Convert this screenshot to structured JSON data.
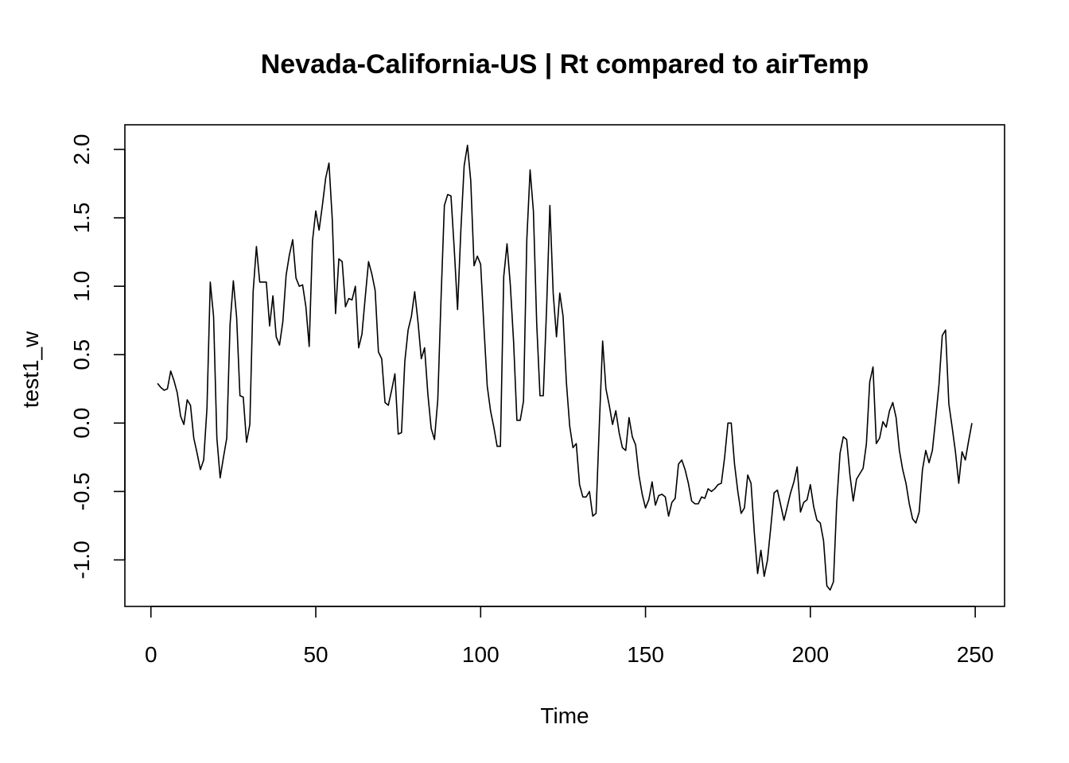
{
  "chart_data": {
    "type": "line",
    "title": "Nevada-California-US | Rt compared to airTemp",
    "xlabel": "Time",
    "ylabel": "test1_w",
    "xlim": [
      -7.9,
      258.9
    ],
    "ylim": [
      -1.34,
      2.18
    ],
    "xticks": [
      0,
      50,
      100,
      150,
      200,
      250
    ],
    "xtick_labels": [
      "0",
      "50",
      "100",
      "150",
      "200",
      "250"
    ],
    "yticks": [
      -1.0,
      -0.5,
      0.0,
      0.5,
      1.0,
      1.5,
      2.0
    ],
    "ytick_labels": [
      "-1.0",
      "-0.5",
      "0.0",
      "0.5",
      "1.0",
      "1.5",
      "2.0"
    ],
    "grid": false,
    "color": "#000000",
    "series": [
      {
        "x_start": 2,
        "values": [
          0.29,
          0.26,
          0.24,
          0.25,
          0.38,
          0.31,
          0.22,
          0.05,
          -0.01,
          0.17,
          0.13,
          -0.11,
          -0.22,
          -0.34,
          -0.27,
          0.11,
          1.03,
          0.78,
          -0.11,
          -0.4,
          -0.25,
          -0.11,
          0.72,
          1.04,
          0.77,
          0.2,
          0.19,
          -0.14,
          -0.01,
          0.96,
          1.29,
          1.03,
          1.03,
          1.03,
          0.71,
          0.93,
          0.63,
          0.57,
          0.74,
          1.08,
          1.23,
          1.34,
          1.06,
          1.0,
          1.01,
          0.85,
          0.56,
          1.33,
          1.55,
          1.41,
          1.59,
          1.79,
          1.9,
          1.49,
          0.8,
          1.2,
          1.18,
          0.85,
          0.91,
          0.9,
          1.0,
          0.55,
          0.65,
          0.92,
          1.18,
          1.09,
          0.97,
          0.52,
          0.47,
          0.15,
          0.13,
          0.24,
          0.36,
          -0.08,
          -0.07,
          0.45,
          0.68,
          0.78,
          0.96,
          0.74,
          0.47,
          0.55,
          0.21,
          -0.04,
          -0.12,
          0.17,
          0.92,
          1.59,
          1.67,
          1.66,
          1.27,
          0.83,
          1.41,
          1.88,
          2.03,
          1.77,
          1.15,
          1.22,
          1.16,
          0.7,
          0.27,
          0.09,
          -0.03,
          -0.17,
          -0.17,
          1.07,
          1.31,
          1.01,
          0.59,
          0.02,
          0.02,
          0.16,
          1.34,
          1.85,
          1.55,
          0.73,
          0.2,
          0.2,
          0.84,
          1.59,
          0.95,
          0.63,
          0.95,
          0.78,
          0.3,
          -0.02,
          -0.18,
          -0.15,
          -0.45,
          -0.54,
          -0.54,
          -0.5,
          -0.68,
          -0.66,
          -0.01,
          0.6,
          0.25,
          0.13,
          -0.01,
          0.09,
          -0.07,
          -0.18,
          -0.2,
          0.04,
          -0.1,
          -0.16,
          -0.38,
          -0.52,
          -0.62,
          -0.56,
          -0.43,
          -0.6,
          -0.53,
          -0.52,
          -0.54,
          -0.68,
          -0.58,
          -0.55,
          -0.3,
          -0.27,
          -0.34,
          -0.44,
          -0.57,
          -0.59,
          -0.59,
          -0.54,
          -0.55,
          -0.48,
          -0.5,
          -0.48,
          -0.45,
          -0.44,
          -0.25,
          0.0,
          0.0,
          -0.3,
          -0.5,
          -0.66,
          -0.62,
          -0.38,
          -0.44,
          -0.8,
          -1.1,
          -0.93,
          -1.12,
          -1.0,
          -0.76,
          -0.51,
          -0.49,
          -0.6,
          -0.71,
          -0.61,
          -0.51,
          -0.43,
          -0.32,
          -0.65,
          -0.58,
          -0.56,
          -0.45,
          -0.61,
          -0.71,
          -0.73,
          -0.86,
          -1.19,
          -1.22,
          -1.16,
          -0.58,
          -0.22,
          -0.1,
          -0.12,
          -0.38,
          -0.57,
          -0.41,
          -0.37,
          -0.33,
          -0.15,
          0.3,
          0.41,
          -0.15,
          -0.11,
          0.01,
          -0.03,
          0.09,
          0.15,
          0.04,
          -0.2,
          -0.34,
          -0.44,
          -0.59,
          -0.7,
          -0.73,
          -0.65,
          -0.34,
          -0.2,
          -0.29,
          -0.2,
          0.03,
          0.28,
          0.64,
          0.68,
          0.14,
          -0.03,
          -0.21,
          -0.44,
          -0.21,
          -0.27,
          -0.13,
          0.0
        ]
      }
    ]
  }
}
